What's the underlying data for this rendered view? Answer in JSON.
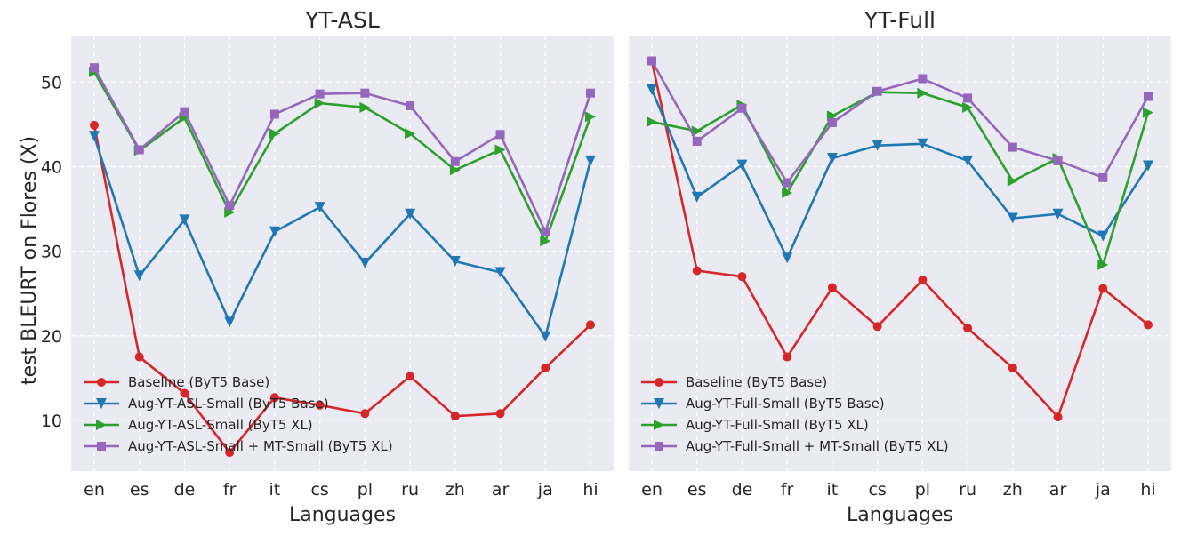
{
  "ylabel": "test BLEURT on Flores (X)",
  "colors": {
    "baseline": "#d62728",
    "aug_small": "#1f77b4",
    "aug_xl": "#2ca02c",
    "aug_mt": "#9467bd",
    "panel_bg": "#eaeaf2",
    "grid": "#ffffff"
  },
  "chart_data": [
    {
      "type": "line",
      "title": "YT-ASL",
      "xlabel": "Languages",
      "ylabel": "test BLEURT on Flores (X)",
      "categories": [
        "en",
        "es",
        "de",
        "fr",
        "it",
        "cs",
        "pl",
        "ru",
        "zh",
        "ar",
        "ja",
        "hi"
      ],
      "ylim": [
        4,
        55.5
      ],
      "yticks": [
        10,
        20,
        30,
        40,
        50
      ],
      "grid": true,
      "legend_position": "lower-left",
      "series": [
        {
          "name": "Baseline (ByT5 Base)",
          "color": "#d62728",
          "marker": "circle",
          "values": [
            44.9,
            17.5,
            13.2,
            6.2,
            12.7,
            11.8,
            10.8,
            15.2,
            10.5,
            10.8,
            16.2,
            21.3
          ]
        },
        {
          "name": "Aug-YT-ASL-Small (ByT5 Base)",
          "color": "#1f77b4",
          "marker": "triangle-down",
          "values": [
            43.6,
            27.1,
            33.7,
            21.6,
            32.3,
            35.2,
            28.6,
            34.4,
            28.8,
            27.5,
            19.9,
            40.7
          ]
        },
        {
          "name": "Aug-YT-ASL-Small (ByT5 XL)",
          "color": "#2ca02c",
          "marker": "triangle-right",
          "values": [
            51.2,
            41.9,
            45.8,
            34.6,
            43.9,
            47.5,
            47.0,
            43.9,
            39.6,
            42.0,
            31.2,
            45.9
          ]
        },
        {
          "name": "Aug-YT-ASL-Small + MT-Small (ByT5 XL)",
          "color": "#9467bd",
          "marker": "square",
          "values": [
            51.7,
            42.0,
            46.5,
            35.4,
            46.2,
            48.6,
            48.7,
            47.2,
            40.6,
            43.8,
            32.3,
            48.7
          ]
        }
      ]
    },
    {
      "type": "line",
      "title": "YT-Full",
      "xlabel": "Languages",
      "categories": [
        "en",
        "es",
        "de",
        "fr",
        "it",
        "cs",
        "pl",
        "ru",
        "zh",
        "ar",
        "ja",
        "hi"
      ],
      "ylim": [
        4,
        55.5
      ],
      "yticks": [
        10,
        20,
        30,
        40,
        50
      ],
      "grid": true,
      "legend_position": "lower-left",
      "series": [
        {
          "name": "Baseline (ByT5 Base)",
          "color": "#d62728",
          "marker": "circle",
          "values": [
            52.5,
            27.7,
            27.0,
            17.5,
            25.7,
            21.1,
            26.6,
            20.9,
            16.2,
            10.4,
            25.6,
            21.3
          ]
        },
        {
          "name": "Aug-YT-Full-Small (ByT5 Base)",
          "color": "#1f77b4",
          "marker": "triangle-down",
          "values": [
            49.1,
            36.4,
            40.2,
            29.2,
            41.0,
            42.5,
            42.7,
            40.7,
            33.9,
            34.4,
            31.8,
            40.1
          ]
        },
        {
          "name": "Aug-YT-Full-Small (ByT5 XL)",
          "color": "#2ca02c",
          "marker": "triangle-right",
          "values": [
            45.3,
            44.2,
            47.3,
            36.9,
            46.0,
            48.8,
            48.7,
            47.0,
            38.3,
            41.0,
            28.4,
            46.4
          ]
        },
        {
          "name": "Aug-YT-Full-Small + MT-Small (ByT5 XL)",
          "color": "#9467bd",
          "marker": "square",
          "values": [
            52.5,
            43.0,
            46.9,
            38.1,
            45.2,
            48.9,
            50.4,
            48.1,
            42.3,
            40.7,
            38.7,
            48.3
          ]
        }
      ]
    }
  ]
}
